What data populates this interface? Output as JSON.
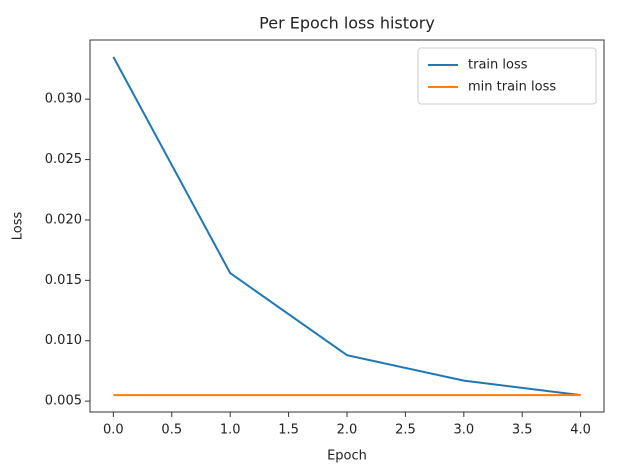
{
  "chart_data": {
    "type": "line",
    "title": "Per Epoch loss history",
    "x_label": "Epoch",
    "y_label": "Loss",
    "x": [
      0,
      1,
      2,
      3,
      4
    ],
    "series": [
      {
        "name": "train loss",
        "color": "#1f77b4",
        "values": [
          0.0335,
          0.0156,
          0.0088,
          0.0067,
          0.0055
        ]
      },
      {
        "name": "min train loss",
        "color": "#ff7f0e",
        "values": [
          0.0055,
          0.0055,
          0.0055,
          0.0055,
          0.0055
        ]
      }
    ],
    "xlim": [
      -0.2,
      4.2
    ],
    "ylim": [
      0.0041,
      0.0349
    ],
    "xticks": [
      {
        "value": 0,
        "label": "0.0"
      },
      {
        "value": 0.5,
        "label": "0.5"
      },
      {
        "value": 1,
        "label": "1.0"
      },
      {
        "value": 1.5,
        "label": "1.5"
      },
      {
        "value": 2,
        "label": "2.0"
      },
      {
        "value": 2.5,
        "label": "2.5"
      },
      {
        "value": 3,
        "label": "3.0"
      },
      {
        "value": 3.5,
        "label": "3.5"
      },
      {
        "value": 4,
        "label": "4.0"
      }
    ],
    "yticks": [
      0.005,
      {
        "value": 0.01,
        "label": "0.010"
      },
      0.015,
      {
        "value": 0.02,
        "label": "0.020"
      },
      0.025,
      {
        "value": 0.03,
        "label": "0.030"
      }
    ],
    "legend": "upper right",
    "grid": false
  }
}
